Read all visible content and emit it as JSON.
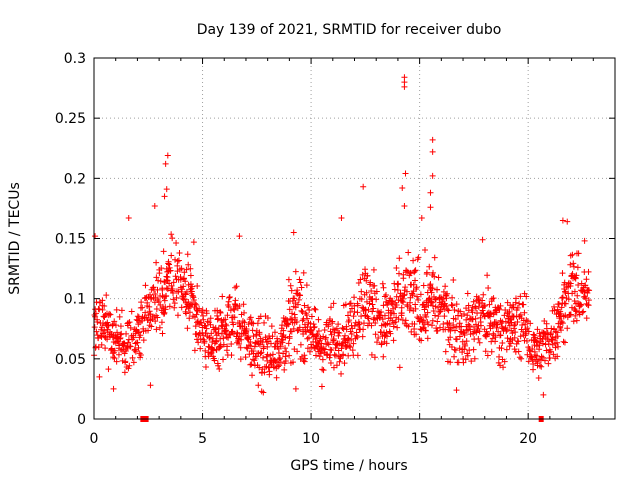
{
  "chart_data": {
    "type": "scatter",
    "title": "Day 139 of 2021, SRMTID for receiver dubo",
    "xlabel": "GPS time / hours",
    "ylabel": "SRMTID / TECUs",
    "xlim": [
      0,
      24
    ],
    "ylim": [
      0,
      0.3
    ],
    "x_ticks": [
      0,
      5,
      10,
      15,
      20
    ],
    "x_tick_labels": [
      "0",
      "5",
      "10",
      "15",
      "20"
    ],
    "y_ticks": [
      0,
      0.05,
      0.1,
      0.15,
      0.2,
      0.25,
      0.3
    ],
    "y_tick_labels": [
      "0",
      "0.05",
      "0.1",
      "0.15",
      "0.2",
      "0.25",
      "0.3"
    ],
    "grid": true,
    "marker": "plus",
    "color": "#ff0000",
    "data_gaps_hours": [
      2.25,
      2.4,
      20.6
    ],
    "profile": {
      "hours": [
        0,
        0.5,
        1,
        1.5,
        2,
        2.5,
        3,
        3.5,
        4,
        4.5,
        5,
        5.5,
        6,
        6.5,
        7,
        7.5,
        8,
        8.5,
        9,
        9.5,
        10,
        10.5,
        11,
        11.5,
        12,
        12.5,
        13,
        13.5,
        14,
        14.5,
        15,
        15.5,
        16,
        16.5,
        17,
        17.5,
        18,
        18.5,
        19,
        19.5,
        20,
        20.5,
        21,
        21.5,
        22,
        22.5,
        22.8
      ],
      "center": [
        0.08,
        0.075,
        0.065,
        0.062,
        0.07,
        0.09,
        0.105,
        0.12,
        0.11,
        0.095,
        0.07,
        0.065,
        0.075,
        0.08,
        0.07,
        0.06,
        0.055,
        0.06,
        0.08,
        0.09,
        0.07,
        0.06,
        0.065,
        0.07,
        0.08,
        0.1,
        0.085,
        0.08,
        0.09,
        0.1,
        0.095,
        0.1,
        0.09,
        0.08,
        0.07,
        0.08,
        0.085,
        0.08,
        0.075,
        0.08,
        0.07,
        0.055,
        0.065,
        0.09,
        0.11,
        0.1,
        0.1
      ],
      "spread": [
        0.03,
        0.03,
        0.025,
        0.025,
        0.03,
        0.035,
        0.04,
        0.04,
        0.035,
        0.03,
        0.025,
        0.025,
        0.03,
        0.035,
        0.03,
        0.03,
        0.03,
        0.03,
        0.035,
        0.04,
        0.03,
        0.025,
        0.03,
        0.03,
        0.035,
        0.04,
        0.035,
        0.035,
        0.04,
        0.045,
        0.04,
        0.04,
        0.035,
        0.035,
        0.03,
        0.035,
        0.035,
        0.03,
        0.03,
        0.03,
        0.03,
        0.025,
        0.025,
        0.03,
        0.035,
        0.03,
        0.03
      ]
    },
    "peaks": [
      {
        "x": 0.05,
        "y": 0.152
      },
      {
        "x": 1.6,
        "y": 0.167
      },
      {
        "x": 3.4,
        "y": 0.219
      },
      {
        "x": 3.3,
        "y": 0.212
      },
      {
        "x": 3.35,
        "y": 0.191
      },
      {
        "x": 3.25,
        "y": 0.185
      },
      {
        "x": 2.8,
        "y": 0.177
      },
      {
        "x": 6.7,
        "y": 0.152
      },
      {
        "x": 9.2,
        "y": 0.155
      },
      {
        "x": 11.4,
        "y": 0.167
      },
      {
        "x": 12.4,
        "y": 0.193
      },
      {
        "x": 14.3,
        "y": 0.284
      },
      {
        "x": 14.3,
        "y": 0.28
      },
      {
        "x": 14.3,
        "y": 0.276
      },
      {
        "x": 14.35,
        "y": 0.204
      },
      {
        "x": 14.2,
        "y": 0.192
      },
      {
        "x": 14.3,
        "y": 0.177
      },
      {
        "x": 15.6,
        "y": 0.232
      },
      {
        "x": 15.6,
        "y": 0.222
      },
      {
        "x": 15.6,
        "y": 0.202
      },
      {
        "x": 15.5,
        "y": 0.188
      },
      {
        "x": 15.5,
        "y": 0.176
      },
      {
        "x": 15.1,
        "y": 0.167
      },
      {
        "x": 21.6,
        "y": 0.165
      },
      {
        "x": 21.8,
        "y": 0.164
      },
      {
        "x": 22.6,
        "y": 0.148
      },
      {
        "x": 17.9,
        "y": 0.149
      },
      {
        "x": 4.6,
        "y": 0.147
      }
    ],
    "lows": [
      {
        "x": 0.25,
        "y": 0.035
      },
      {
        "x": 0.9,
        "y": 0.025
      },
      {
        "x": 2.6,
        "y": 0.028
      },
      {
        "x": 7.8,
        "y": 0.022
      },
      {
        "x": 9.3,
        "y": 0.025
      },
      {
        "x": 10.5,
        "y": 0.027
      },
      {
        "x": 16.7,
        "y": 0.024
      },
      {
        "x": 20.7,
        "y": 0.02
      }
    ]
  }
}
